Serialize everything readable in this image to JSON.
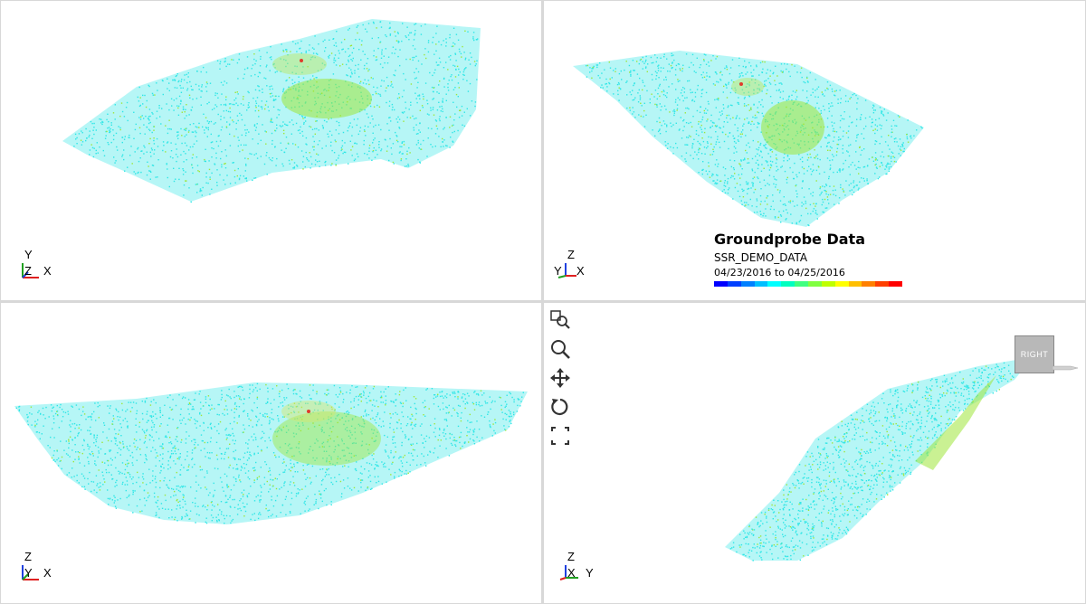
{
  "viewports": {
    "top_left": {
      "axes": {
        "vertical": "Y",
        "depth": "Z",
        "horizontal": "X"
      }
    },
    "top_right": {
      "axes": {
        "vertical": "Z",
        "depth": "Y",
        "horizontal": "X"
      }
    },
    "bottom_left": {
      "axes": {
        "vertical": "Z",
        "depth": "Y",
        "horizontal": "X"
      }
    },
    "bottom_right": {
      "axes": {
        "vertical": "Z",
        "depth": "X",
        "horizontal": "Y"
      }
    }
  },
  "legend": {
    "title": "Groundprobe Data",
    "dataset": "SSR_DEMO_DATA",
    "date_range": "04/23/2016 to 04/25/2016",
    "colors": [
      "#0000ff",
      "#0040ff",
      "#0080ff",
      "#00bfff",
      "#00ffff",
      "#00ffbf",
      "#40ff80",
      "#80ff40",
      "#bfff00",
      "#ffff00",
      "#ffbf00",
      "#ff8000",
      "#ff4000",
      "#ff0000"
    ]
  },
  "toolbar": {
    "tools": [
      {
        "name": "zoom-window-icon"
      },
      {
        "name": "zoom-icon"
      },
      {
        "name": "pan-icon"
      },
      {
        "name": "rotate-icon"
      },
      {
        "name": "zoom-extents-icon"
      }
    ]
  },
  "view_cube": {
    "label": "RIGHT"
  },
  "theme": {
    "cloud_color": "#2ee6e6",
    "hot_color": "#9ee63a",
    "peak_color": "#e03c2c",
    "axis_x": "#e02020",
    "axis_y": "#20a020",
    "axis_z": "#2040e0"
  }
}
